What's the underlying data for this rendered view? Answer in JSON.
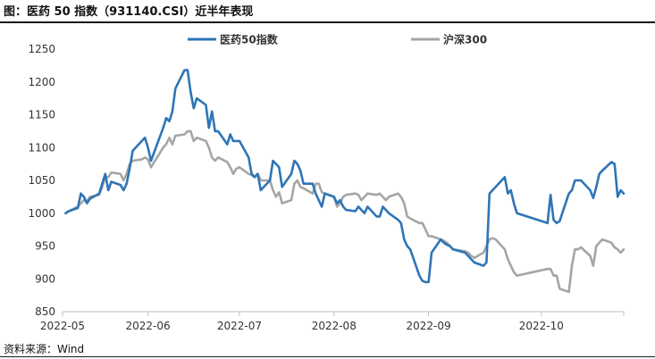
{
  "title": "图：医药 50 指数（931140.CSI）近半年表现",
  "source": "资料来源：Wind",
  "chart_data": {
    "type": "line",
    "title": "图：医药 50 指数（931140.CSI）近半年表现",
    "ylim": [
      850,
      1250
    ],
    "yticks": [
      850,
      900,
      950,
      1000,
      1050,
      1100,
      1150,
      1200,
      1250
    ],
    "xlim": [
      "2022-05-04",
      "2022-11-04"
    ],
    "xticks": [
      "2022-05",
      "2022-06",
      "2022-07",
      "2022-08",
      "2022-09",
      "2022-10"
    ],
    "xtick_dates": [
      "2022-05-04",
      "2022-06-01",
      "2022-07-01",
      "2022-08-01",
      "2022-09-01",
      "2022-10-08"
    ],
    "grid": false,
    "legend_position": "top",
    "series": [
      {
        "name": "医药50指数",
        "color": "#2E75B6",
        "points": [
          [
            "2022-05-05",
            1000
          ],
          [
            "2022-05-06",
            1003
          ],
          [
            "2022-05-09",
            1008
          ],
          [
            "2022-05-10",
            1030
          ],
          [
            "2022-05-11",
            1025
          ],
          [
            "2022-05-12",
            1015
          ],
          [
            "2022-05-13",
            1022
          ],
          [
            "2022-05-16",
            1030
          ],
          [
            "2022-05-17",
            1045
          ],
          [
            "2022-05-18",
            1060
          ],
          [
            "2022-05-19",
            1035
          ],
          [
            "2022-05-20",
            1048
          ],
          [
            "2022-05-23",
            1043
          ],
          [
            "2022-05-24",
            1035
          ],
          [
            "2022-05-25",
            1045
          ],
          [
            "2022-05-26",
            1068
          ],
          [
            "2022-05-27",
            1095
          ],
          [
            "2022-05-30",
            1110
          ],
          [
            "2022-05-31",
            1115
          ],
          [
            "2022-06-01",
            1100
          ],
          [
            "2022-06-02",
            1080
          ],
          [
            "2022-06-06",
            1130
          ],
          [
            "2022-06-07",
            1145
          ],
          [
            "2022-06-08",
            1140
          ],
          [
            "2022-06-09",
            1155
          ],
          [
            "2022-06-10",
            1190
          ],
          [
            "2022-06-13",
            1218
          ],
          [
            "2022-06-14",
            1218
          ],
          [
            "2022-06-15",
            1185
          ],
          [
            "2022-06-16",
            1160
          ],
          [
            "2022-06-17",
            1175
          ],
          [
            "2022-06-20",
            1165
          ],
          [
            "2022-06-21",
            1130
          ],
          [
            "2022-06-22",
            1155
          ],
          [
            "2022-06-23",
            1125
          ],
          [
            "2022-06-24",
            1125
          ],
          [
            "2022-06-27",
            1105
          ],
          [
            "2022-06-28",
            1120
          ],
          [
            "2022-06-29",
            1110
          ],
          [
            "2022-06-30",
            1110
          ],
          [
            "2022-07-01",
            1110
          ],
          [
            "2022-07-04",
            1085
          ],
          [
            "2022-07-05",
            1060
          ],
          [
            "2022-07-06",
            1055
          ],
          [
            "2022-07-07",
            1060
          ],
          [
            "2022-07-08",
            1035
          ],
          [
            "2022-07-11",
            1050
          ],
          [
            "2022-07-12",
            1080
          ],
          [
            "2022-07-13",
            1075
          ],
          [
            "2022-07-14",
            1070
          ],
          [
            "2022-07-15",
            1040
          ],
          [
            "2022-07-18",
            1060
          ],
          [
            "2022-07-19",
            1080
          ],
          [
            "2022-07-20",
            1075
          ],
          [
            "2022-07-21",
            1065
          ],
          [
            "2022-07-22",
            1045
          ],
          [
            "2022-07-25",
            1045
          ],
          [
            "2022-07-26",
            1030
          ],
          [
            "2022-07-27",
            1020
          ],
          [
            "2022-07-28",
            1010
          ],
          [
            "2022-07-29",
            1030
          ],
          [
            "2022-08-01",
            1025
          ],
          [
            "2022-08-02",
            1015
          ],
          [
            "2022-08-03",
            1020
          ],
          [
            "2022-08-04",
            1010
          ],
          [
            "2022-08-05",
            1005
          ],
          [
            "2022-08-08",
            1003
          ],
          [
            "2022-08-09",
            1010
          ],
          [
            "2022-08-10",
            1005
          ],
          [
            "2022-08-11",
            1000
          ],
          [
            "2022-08-12",
            1010
          ],
          [
            "2022-08-15",
            995
          ],
          [
            "2022-08-16",
            995
          ],
          [
            "2022-08-17",
            1010
          ],
          [
            "2022-08-18",
            1005
          ],
          [
            "2022-08-19",
            1000
          ],
          [
            "2022-08-22",
            990
          ],
          [
            "2022-08-23",
            985
          ],
          [
            "2022-08-24",
            960
          ],
          [
            "2022-08-25",
            950
          ],
          [
            "2022-08-26",
            945
          ],
          [
            "2022-08-29",
            905
          ],
          [
            "2022-08-30",
            897
          ],
          [
            "2022-08-31",
            895
          ],
          [
            "2022-09-01",
            895
          ],
          [
            "2022-09-02",
            940
          ],
          [
            "2022-09-05",
            960
          ],
          [
            "2022-09-06",
            955
          ],
          [
            "2022-09-07",
            952
          ],
          [
            "2022-09-08",
            950
          ],
          [
            "2022-09-09",
            945
          ],
          [
            "2022-09-13",
            940
          ],
          [
            "2022-09-14",
            935
          ],
          [
            "2022-09-15",
            930
          ],
          [
            "2022-09-16",
            925
          ],
          [
            "2022-09-19",
            920
          ],
          [
            "2022-09-20",
            925
          ],
          [
            "2022-09-21",
            1030
          ],
          [
            "2022-09-22",
            1035
          ],
          [
            "2022-09-23",
            1040
          ],
          [
            "2022-09-26",
            1055
          ],
          [
            "2022-09-27",
            1030
          ],
          [
            "2022-09-28",
            1035
          ],
          [
            "2022-09-29",
            1015
          ],
          [
            "2022-09-30",
            1000
          ],
          [
            "2022-10-10",
            985
          ],
          [
            "2022-10-11",
            1028
          ],
          [
            "2022-10-12",
            990
          ],
          [
            "2022-10-13",
            985
          ],
          [
            "2022-10-14",
            988
          ],
          [
            "2022-10-17",
            1030
          ],
          [
            "2022-10-18",
            1035
          ],
          [
            "2022-10-19",
            1050
          ],
          [
            "2022-10-20",
            1050
          ],
          [
            "2022-10-21",
            1050
          ],
          [
            "2022-10-24",
            1035
          ],
          [
            "2022-10-25",
            1023
          ],
          [
            "2022-10-26",
            1040
          ],
          [
            "2022-10-27",
            1060
          ],
          [
            "2022-10-28",
            1065
          ],
          [
            "2022-10-31",
            1078
          ],
          [
            "2022-11-01",
            1075
          ],
          [
            "2022-11-02",
            1025
          ],
          [
            "2022-11-03",
            1035
          ],
          [
            "2022-11-04",
            1030
          ]
        ]
      },
      {
        "name": "沪深300",
        "color": "#A5A5A5",
        "points": [
          [
            "2022-05-05",
            1000
          ],
          [
            "2022-05-06",
            1003
          ],
          [
            "2022-05-09",
            1010
          ],
          [
            "2022-05-10",
            1015
          ],
          [
            "2022-05-11",
            1020
          ],
          [
            "2022-05-12",
            1018
          ],
          [
            "2022-05-13",
            1025
          ],
          [
            "2022-05-16",
            1028
          ],
          [
            "2022-05-17",
            1040
          ],
          [
            "2022-05-18",
            1055
          ],
          [
            "2022-05-19",
            1055
          ],
          [
            "2022-05-20",
            1062
          ],
          [
            "2022-05-23",
            1060
          ],
          [
            "2022-05-24",
            1050
          ],
          [
            "2022-05-25",
            1060
          ],
          [
            "2022-05-26",
            1075
          ],
          [
            "2022-05-27",
            1080
          ],
          [
            "2022-05-30",
            1082
          ],
          [
            "2022-05-31",
            1085
          ],
          [
            "2022-06-01",
            1082
          ],
          [
            "2022-06-02",
            1070
          ],
          [
            "2022-06-06",
            1100
          ],
          [
            "2022-06-07",
            1105
          ],
          [
            "2022-06-08",
            1115
          ],
          [
            "2022-06-09",
            1105
          ],
          [
            "2022-06-10",
            1118
          ],
          [
            "2022-06-13",
            1120
          ],
          [
            "2022-06-14",
            1125
          ],
          [
            "2022-06-15",
            1125
          ],
          [
            "2022-06-16",
            1110
          ],
          [
            "2022-06-17",
            1115
          ],
          [
            "2022-06-20",
            1110
          ],
          [
            "2022-06-21",
            1100
          ],
          [
            "2022-06-22",
            1085
          ],
          [
            "2022-06-23",
            1080
          ],
          [
            "2022-06-24",
            1085
          ],
          [
            "2022-06-27",
            1078
          ],
          [
            "2022-06-28",
            1070
          ],
          [
            "2022-06-29",
            1060
          ],
          [
            "2022-06-30",
            1068
          ],
          [
            "2022-07-01",
            1070
          ],
          [
            "2022-07-04",
            1060
          ],
          [
            "2022-07-05",
            1058
          ],
          [
            "2022-07-06",
            1055
          ],
          [
            "2022-07-07",
            1060
          ],
          [
            "2022-07-08",
            1050
          ],
          [
            "2022-07-11",
            1050
          ],
          [
            "2022-07-12",
            1035
          ],
          [
            "2022-07-13",
            1025
          ],
          [
            "2022-07-14",
            1032
          ],
          [
            "2022-07-15",
            1015
          ],
          [
            "2022-07-18",
            1020
          ],
          [
            "2022-07-19",
            1045
          ],
          [
            "2022-07-20",
            1050
          ],
          [
            "2022-07-21",
            1040
          ],
          [
            "2022-07-22",
            1038
          ],
          [
            "2022-07-25",
            1030
          ],
          [
            "2022-07-26",
            1045
          ],
          [
            "2022-07-27",
            1045
          ],
          [
            "2022-07-28",
            1032
          ],
          [
            "2022-07-29",
            1030
          ],
          [
            "2022-08-01",
            1025
          ],
          [
            "2022-08-02",
            1010
          ],
          [
            "2022-08-03",
            1015
          ],
          [
            "2022-08-04",
            1025
          ],
          [
            "2022-08-05",
            1028
          ],
          [
            "2022-08-08",
            1030
          ],
          [
            "2022-08-09",
            1028
          ],
          [
            "2022-08-10",
            1020
          ],
          [
            "2022-08-11",
            1025
          ],
          [
            "2022-08-12",
            1030
          ],
          [
            "2022-08-15",
            1028
          ],
          [
            "2022-08-16",
            1030
          ],
          [
            "2022-08-17",
            1025
          ],
          [
            "2022-08-18",
            1020
          ],
          [
            "2022-08-19",
            1025
          ],
          [
            "2022-08-22",
            1030
          ],
          [
            "2022-08-23",
            1025
          ],
          [
            "2022-08-24",
            1015
          ],
          [
            "2022-08-25",
            995
          ],
          [
            "2022-08-26",
            992
          ],
          [
            "2022-08-29",
            985
          ],
          [
            "2022-08-30",
            985
          ],
          [
            "2022-08-31",
            975
          ],
          [
            "2022-09-01",
            965
          ],
          [
            "2022-09-02",
            965
          ],
          [
            "2022-09-05",
            960
          ],
          [
            "2022-09-06",
            958
          ],
          [
            "2022-09-07",
            955
          ],
          [
            "2022-09-08",
            950
          ],
          [
            "2022-09-09",
            945
          ],
          [
            "2022-09-13",
            942
          ],
          [
            "2022-09-14",
            940
          ],
          [
            "2022-09-15",
            935
          ],
          [
            "2022-09-16",
            932
          ],
          [
            "2022-09-19",
            940
          ],
          [
            "2022-09-20",
            950
          ],
          [
            "2022-09-21",
            960
          ],
          [
            "2022-09-22",
            962
          ],
          [
            "2022-09-23",
            960
          ],
          [
            "2022-09-26",
            945
          ],
          [
            "2022-09-27",
            930
          ],
          [
            "2022-09-28",
            920
          ],
          [
            "2022-09-29",
            910
          ],
          [
            "2022-09-30",
            905
          ],
          [
            "2022-10-10",
            915
          ],
          [
            "2022-10-11",
            915
          ],
          [
            "2022-10-12",
            905
          ],
          [
            "2022-10-13",
            905
          ],
          [
            "2022-10-14",
            885
          ],
          [
            "2022-10-17",
            880
          ],
          [
            "2022-10-18",
            920
          ],
          [
            "2022-10-19",
            945
          ],
          [
            "2022-10-20",
            945
          ],
          [
            "2022-10-21",
            948
          ],
          [
            "2022-10-24",
            935
          ],
          [
            "2022-10-25",
            920
          ],
          [
            "2022-10-26",
            950
          ],
          [
            "2022-10-27",
            955
          ],
          [
            "2022-10-28",
            960
          ],
          [
            "2022-10-31",
            955
          ],
          [
            "2022-11-01",
            948
          ],
          [
            "2022-11-02",
            945
          ],
          [
            "2022-11-03",
            940
          ],
          [
            "2022-11-04",
            945
          ]
        ]
      }
    ]
  }
}
